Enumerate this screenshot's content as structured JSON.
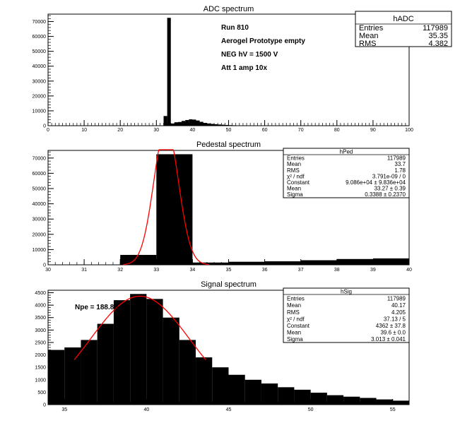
{
  "chart_data": [
    {
      "id": "hADC",
      "type": "bar",
      "title": "ADC spectrum",
      "xlim": [
        0,
        100
      ],
      "ylim": [
        0,
        75000
      ],
      "xticks": [
        0,
        10,
        20,
        30,
        40,
        50,
        60,
        70,
        80,
        90,
        100
      ],
      "yticks": [
        0,
        10000,
        20000,
        30000,
        40000,
        50000,
        60000,
        70000
      ],
      "bins": [
        {
          "x0": 32,
          "x1": 33,
          "y": 6500
        },
        {
          "x0": 33,
          "x1": 34,
          "y": 72500
        },
        {
          "x0": 34,
          "x1": 35,
          "y": 1500
        },
        {
          "x0": 35,
          "x1": 36,
          "y": 2300
        },
        {
          "x0": 36,
          "x1": 37,
          "y": 2500
        },
        {
          "x0": 37,
          "x1": 38,
          "y": 3200
        },
        {
          "x0": 38,
          "x1": 39,
          "y": 3800
        },
        {
          "x0": 39,
          "x1": 40,
          "y": 4300
        },
        {
          "x0": 40,
          "x1": 41,
          "y": 4100
        },
        {
          "x0": 41,
          "x1": 42,
          "y": 3500
        },
        {
          "x0": 42,
          "x1": 43,
          "y": 2600
        },
        {
          "x0": 43,
          "x1": 44,
          "y": 1900
        },
        {
          "x0": 44,
          "x1": 45,
          "y": 1500
        },
        {
          "x0": 45,
          "x1": 46,
          "y": 1200
        },
        {
          "x0": 46,
          "x1": 47,
          "y": 1000
        },
        {
          "x0": 47,
          "x1": 48,
          "y": 800
        },
        {
          "x0": 48,
          "x1": 49,
          "y": 650
        },
        {
          "x0": 49,
          "x1": 50,
          "y": 500
        },
        {
          "x0": 50,
          "x1": 51,
          "y": 380
        },
        {
          "x0": 51,
          "x1": 52,
          "y": 300
        },
        {
          "x0": 52,
          "x1": 53,
          "y": 230
        },
        {
          "x0": 53,
          "x1": 54,
          "y": 180
        },
        {
          "x0": 54,
          "x1": 55,
          "y": 140
        },
        {
          "x0": 55,
          "x1": 56,
          "y": 110
        },
        {
          "x0": 56,
          "x1": 58,
          "y": 80
        },
        {
          "x0": 58,
          "x1": 60,
          "y": 50
        }
      ],
      "stats": {
        "name": "hADC",
        "rows": [
          {
            "label": "Entries",
            "value": "117989"
          },
          {
            "label": "Mean",
            "value": "35.35"
          },
          {
            "label": "RMS",
            "value": "4.382"
          }
        ]
      },
      "annotations": [
        "Run  810",
        "Aerogel Prototype empty",
        "NEG hV = 1500 V",
        "Att 1 amp 10x"
      ]
    },
    {
      "id": "hPed",
      "type": "bar",
      "title": "Pedestal spectrum",
      "xlim": [
        30,
        40
      ],
      "ylim": [
        0,
        75000
      ],
      "xticks": [
        30,
        31,
        32,
        33,
        34,
        35,
        36,
        37,
        38,
        39,
        40
      ],
      "yticks": [
        0,
        10000,
        20000,
        30000,
        40000,
        50000,
        60000,
        70000
      ],
      "bins": [
        {
          "x0": 32,
          "x1": 33,
          "y": 6500
        },
        {
          "x0": 33,
          "x1": 34,
          "y": 72500
        },
        {
          "x0": 34,
          "x1": 35,
          "y": 1500
        },
        {
          "x0": 35,
          "x1": 36,
          "y": 2000
        },
        {
          "x0": 36,
          "x1": 37,
          "y": 2300
        },
        {
          "x0": 37,
          "x1": 38,
          "y": 3000
        },
        {
          "x0": 38,
          "x1": 39,
          "y": 3800
        },
        {
          "x0": 39,
          "x1": 40,
          "y": 4200
        }
      ],
      "fit": {
        "constant": 90860,
        "mean": 33.27,
        "sigma": 0.3388
      },
      "stats": {
        "name": "hPed",
        "rows": [
          {
            "label": "Entries",
            "value": "117989"
          },
          {
            "label": "Mean",
            "value": "33.7"
          },
          {
            "label": "RMS",
            "value": "1.78"
          },
          {
            "label": "χ² / ndf",
            "value": "3.791e-09 / 0"
          },
          {
            "label": "Constant",
            "value": "9.086e+04 ± 9.836e+04"
          },
          {
            "label": "Mean",
            "value": "33.27 ± 0.39"
          },
          {
            "label": "Sigma",
            "value": "0.3388 ± 0.2370"
          }
        ]
      }
    },
    {
      "id": "hSig",
      "type": "bar",
      "title": "Signal spectrum",
      "xlim": [
        34,
        56
      ],
      "ylim": [
        0,
        4600
      ],
      "xticks": [
        35,
        40,
        45,
        50,
        55
      ],
      "yticks": [
        0,
        500,
        1000,
        1500,
        2000,
        2500,
        3000,
        3500,
        4000,
        4500
      ],
      "bins": [
        {
          "x0": 34,
          "x1": 35,
          "y": 2200
        },
        {
          "x0": 35,
          "x1": 36,
          "y": 2300
        },
        {
          "x0": 36,
          "x1": 37,
          "y": 2600
        },
        {
          "x0": 37,
          "x1": 38,
          "y": 3250
        },
        {
          "x0": 38,
          "x1": 39,
          "y": 4200
        },
        {
          "x0": 39,
          "x1": 40,
          "y": 4450
        },
        {
          "x0": 40,
          "x1": 41,
          "y": 4250
        },
        {
          "x0": 41,
          "x1": 42,
          "y": 3500
        },
        {
          "x0": 42,
          "x1": 43,
          "y": 2600
        },
        {
          "x0": 43,
          "x1": 44,
          "y": 1900
        },
        {
          "x0": 44,
          "x1": 45,
          "y": 1500
        },
        {
          "x0": 45,
          "x1": 46,
          "y": 1200
        },
        {
          "x0": 46,
          "x1": 47,
          "y": 1000
        },
        {
          "x0": 47,
          "x1": 48,
          "y": 850
        },
        {
          "x0": 48,
          "x1": 49,
          "y": 700
        },
        {
          "x0": 49,
          "x1": 50,
          "y": 600
        },
        {
          "x0": 50,
          "x1": 51,
          "y": 480
        },
        {
          "x0": 51,
          "x1": 52,
          "y": 380
        },
        {
          "x0": 52,
          "x1": 53,
          "y": 320
        },
        {
          "x0": 53,
          "x1": 54,
          "y": 270
        },
        {
          "x0": 54,
          "x1": 55,
          "y": 210
        },
        {
          "x0": 55,
          "x1": 56,
          "y": 160
        }
      ],
      "fit": {
        "constant": 4362,
        "mean": 39.6,
        "sigma": 3.013,
        "range": [
          35.6,
          43.6
        ]
      },
      "stats": {
        "name": "hSig",
        "rows": [
          {
            "label": "Entries",
            "value": "117989"
          },
          {
            "label": "Mean",
            "value": "40.17"
          },
          {
            "label": "RMS",
            "value": "4.205"
          },
          {
            "label": "χ² / ndf",
            "value": "37.13 / 5"
          },
          {
            "label": "Constant",
            "value": "4362 ± 37.8"
          },
          {
            "label": "Mean",
            "value": "39.6 ± 0.0"
          },
          {
            "label": "Sigma",
            "value": "3.013 ± 0.041"
          }
        ]
      },
      "annotations": [
        "Npe = 188.80"
      ]
    }
  ],
  "colors": {
    "bars": "#000000",
    "fit": "#ff0000",
    "frame": "#000000"
  }
}
